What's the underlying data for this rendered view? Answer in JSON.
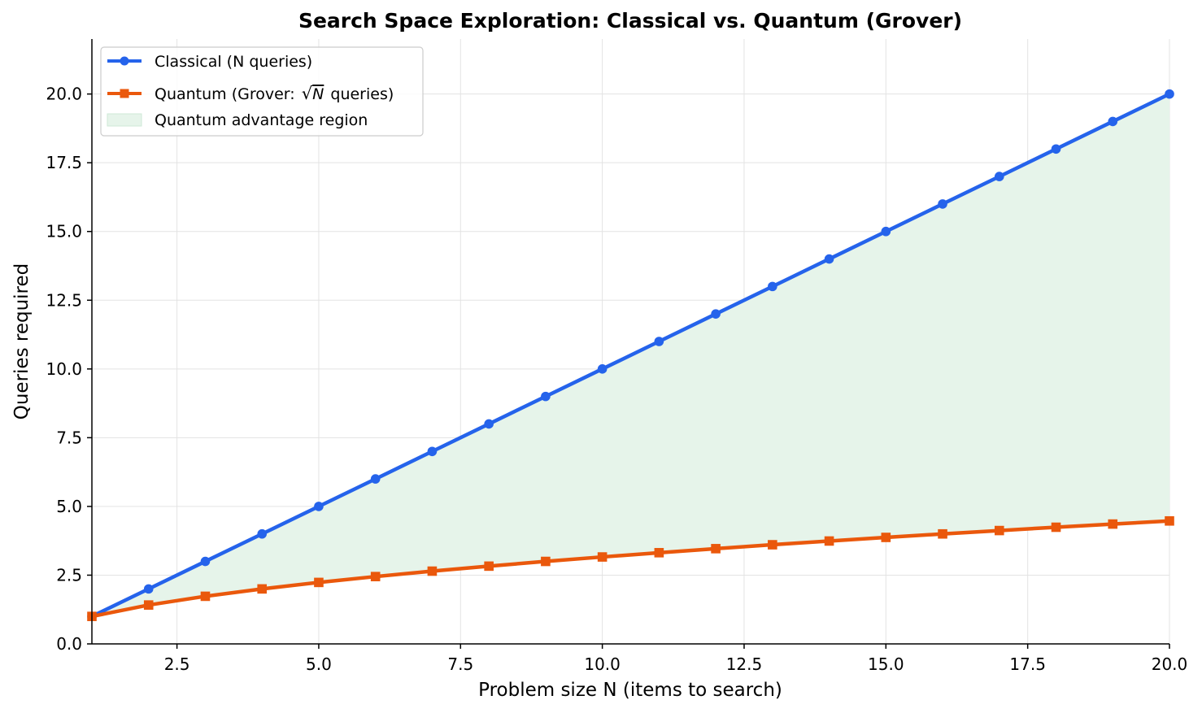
{
  "chart_data": {
    "type": "line",
    "title": "Search Space Exploration: Classical vs. Quantum (Grover)",
    "xlabel": "Problem size  N  (items to search)",
    "ylabel": "Queries required",
    "xlim": [
      1,
      20
    ],
    "ylim": [
      0,
      22
    ],
    "xticks": [
      2.5,
      5.0,
      7.5,
      10.0,
      12.5,
      15.0,
      17.5,
      20.0
    ],
    "xtick_labels": [
      "2.5",
      "5.0",
      "7.5",
      "10.0",
      "12.5",
      "15.0",
      "17.5",
      "20.0"
    ],
    "yticks": [
      0,
      2.5,
      5.0,
      7.5,
      10.0,
      12.5,
      15.0,
      17.5,
      20.0
    ],
    "ytick_labels": [
      "0.0",
      "2.5",
      "5.0",
      "7.5",
      "10.0",
      "12.5",
      "15.0",
      "17.5",
      "20.0"
    ],
    "grid": true,
    "legend_position": "top-left",
    "x": [
      1,
      2,
      3,
      4,
      5,
      6,
      7,
      8,
      9,
      10,
      11,
      12,
      13,
      14,
      15,
      16,
      17,
      18,
      19,
      20
    ],
    "series": [
      {
        "name": "Classical (N queries)",
        "marker": "circle",
        "color": "#2563eb",
        "values": [
          1,
          2,
          3,
          4,
          5,
          6,
          7,
          8,
          9,
          10,
          11,
          12,
          13,
          14,
          15,
          16,
          17,
          18,
          19,
          20
        ]
      },
      {
        "name": "Quantum (Grover: √N queries)",
        "legend_prefix": "Quantum (Grover: ",
        "legend_suffix": " queries)",
        "marker": "square",
        "color": "#ea580c",
        "values": [
          1.0,
          1.414,
          1.732,
          2.0,
          2.236,
          2.449,
          2.646,
          2.828,
          3.0,
          3.162,
          3.317,
          3.464,
          3.606,
          3.742,
          3.873,
          4.0,
          4.123,
          4.243,
          4.359,
          4.472
        ]
      }
    ],
    "fill_between": {
      "name": "Quantum advantage region",
      "color": "#e6f4ea",
      "edge_color": "#cfe9d7",
      "between": [
        "Classical (N queries)",
        "Quantum (Grover: √N queries)"
      ]
    }
  }
}
